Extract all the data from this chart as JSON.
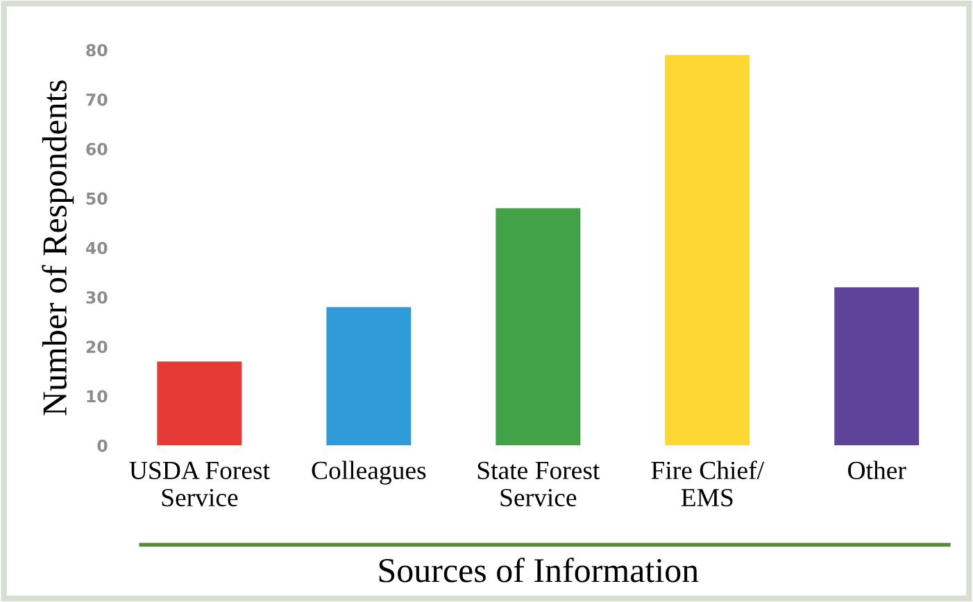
{
  "chart_data": {
    "type": "bar",
    "xlabel": "Sources of Information",
    "ylabel": "Number of Respondents",
    "categories": [
      "USDA Forest\nService",
      "Colleagues",
      "State Forest\nService",
      "Fire Chief/\nEMS",
      "Other"
    ],
    "values": [
      17,
      28,
      48,
      79,
      32
    ],
    "colors": [
      "#e53a35",
      "#2f9bd9",
      "#43a248",
      "#fdd835",
      "#5e439b"
    ],
    "ylim": [
      0,
      80
    ],
    "yticks": [
      0,
      10,
      20,
      30,
      40,
      50,
      60,
      70,
      80
    ],
    "grid": false
  }
}
